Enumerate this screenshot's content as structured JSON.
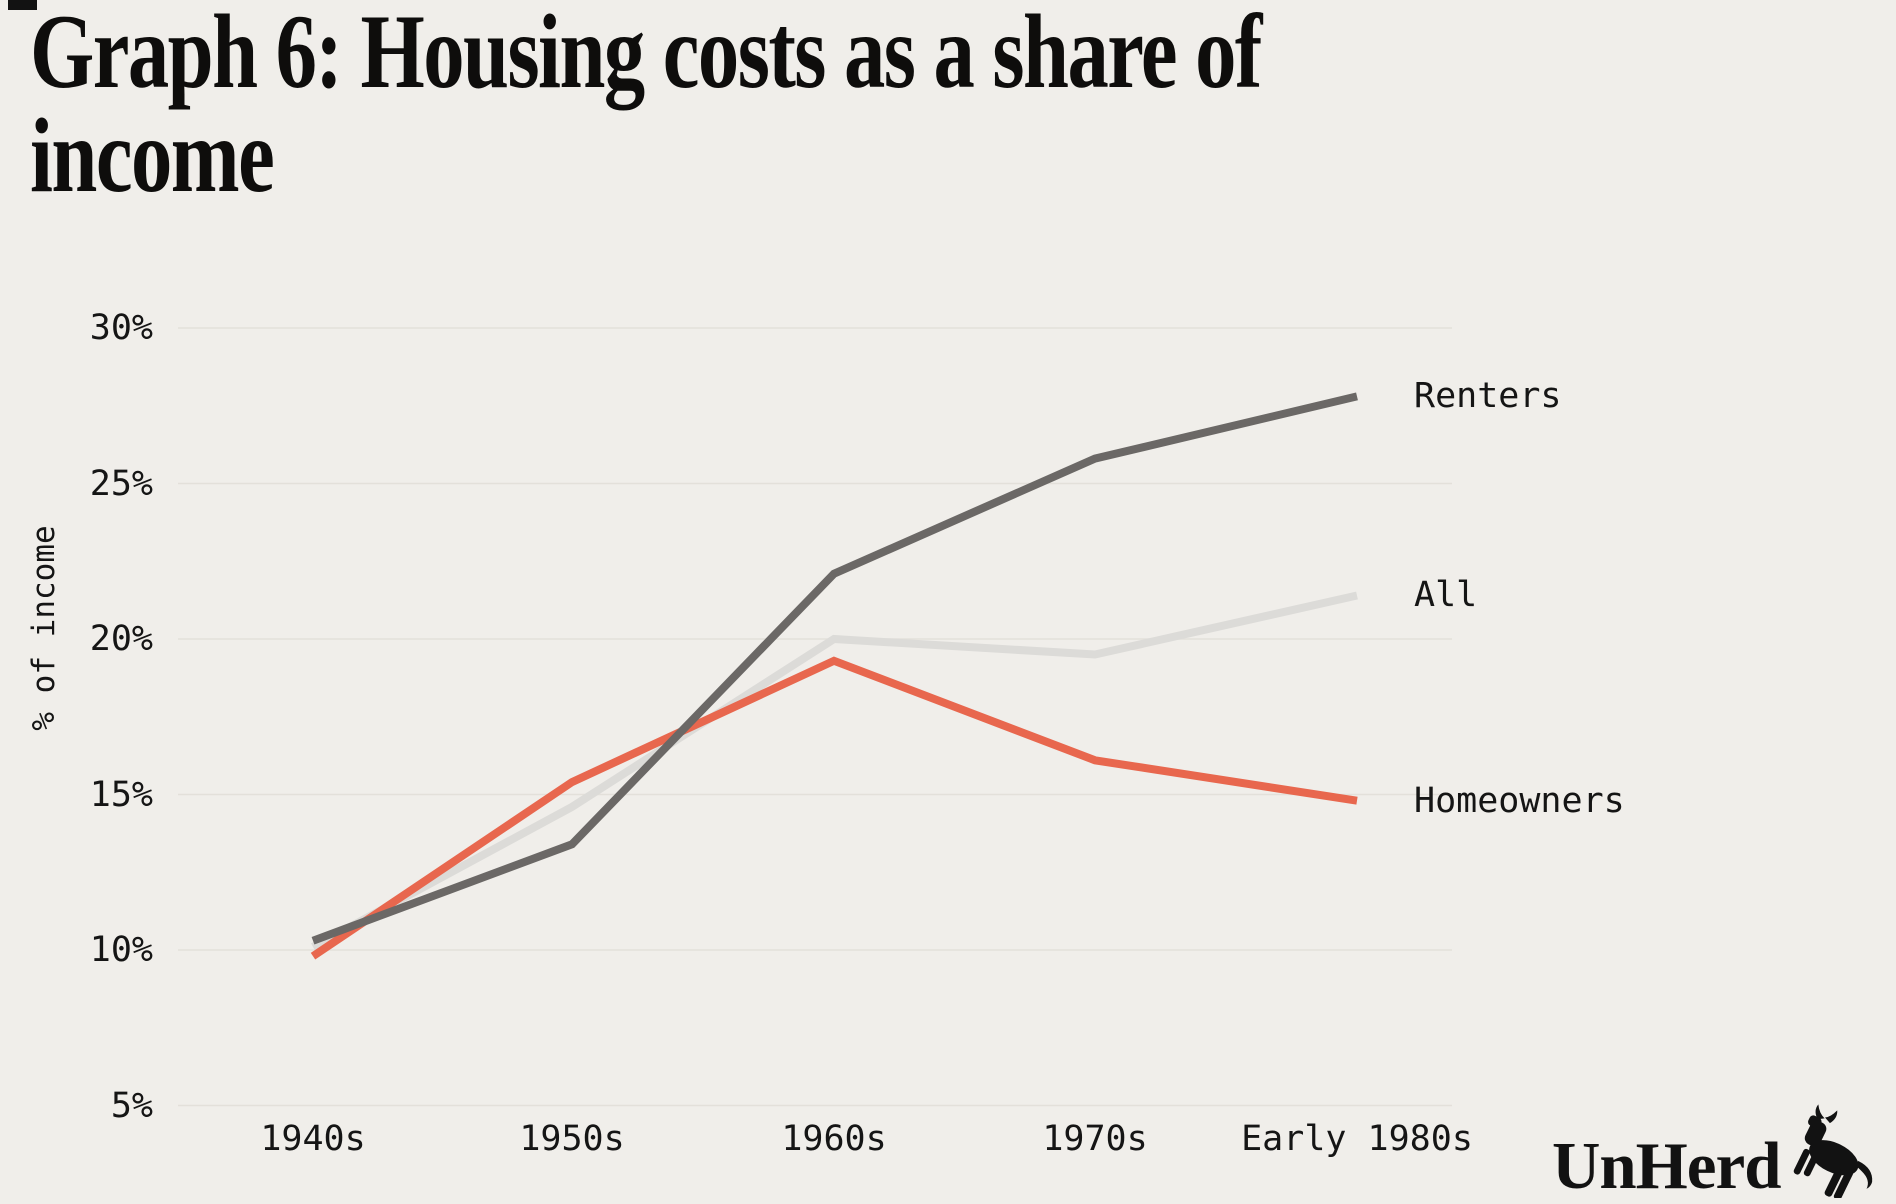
{
  "title_lines": [
    "Graph 6: Housing costs as a share of",
    "income"
  ],
  "colors": {
    "background": "#f0eeea",
    "gridline": "#e3e0da",
    "text": "#151515",
    "renters": "#6b6866",
    "all": "#dcdbd8",
    "homeowners": "#e8674e"
  },
  "logo": {
    "text": "UnHerd",
    "icon": "rearing-cow-icon"
  },
  "chart_data": {
    "type": "line",
    "title": "Graph 6: Housing costs as a share of income",
    "xlabel": "",
    "ylabel": "% of income",
    "categories": [
      "1940s",
      "1950s",
      "1960s",
      "1970s",
      "Early 1980s"
    ],
    "series": [
      {
        "name": "All",
        "color": "#dcdbd8",
        "values": [
          10.1,
          14.6,
          20.0,
          19.5,
          21.4
        ]
      },
      {
        "name": "Homeowners",
        "color": "#e8674e",
        "values": [
          9.8,
          15.4,
          19.3,
          16.1,
          14.8
        ]
      },
      {
        "name": "Renters",
        "color": "#6b6866",
        "values": [
          10.3,
          13.4,
          22.1,
          25.8,
          27.8
        ]
      }
    ],
    "ylim": [
      5,
      30
    ],
    "yticks": [
      30,
      25,
      20,
      15,
      10,
      5
    ],
    "ytick_suffix": "%",
    "grid": "horizontal",
    "legend_position": "right-of-line-ends",
    "legend_order_top_to_bottom": [
      "Renters",
      "All",
      "Homeowners"
    ]
  }
}
